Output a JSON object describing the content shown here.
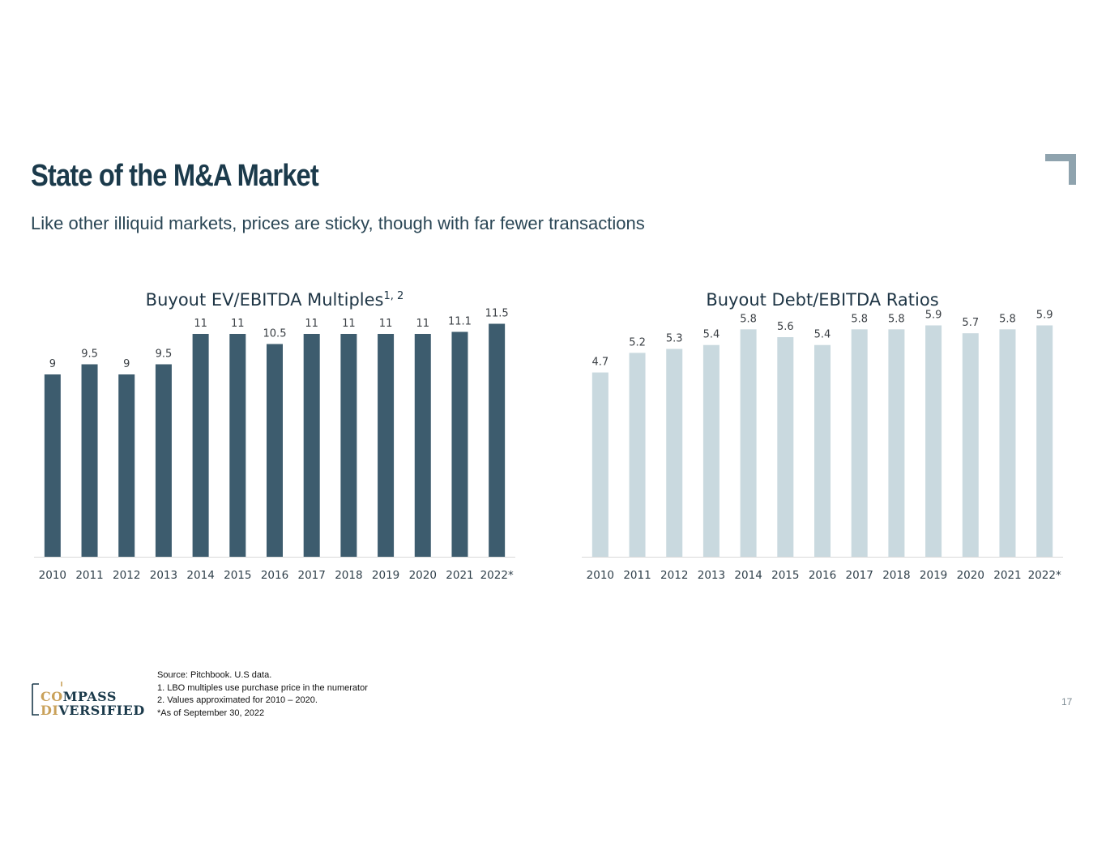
{
  "slide": {
    "title": "State of the M&A Market",
    "subtitle": "Like other illiquid markets, prices are sticky, though with far fewer transactions",
    "page_number": "17"
  },
  "footnotes": {
    "source": "Source: Pitchbook. U.S data.",
    "note1": "1. LBO multiples use purchase price in the numerator",
    "note2": "2. Values approximated for 2010 – 2020.",
    "note3": "*As of September 30, 2022"
  },
  "logo": {
    "line1_prefix": "CO",
    "line1_rest": "MPASS",
    "line2_prefix": "DI",
    "line2_rest": "VERSIFIED"
  },
  "colors": {
    "title": "#1b3a4b",
    "bar_dark": "#3d5c6e",
    "bar_light": "#c9d9df",
    "accent_gold": "#c9a15a",
    "corner": "#8fa3ae"
  },
  "chart_data": [
    {
      "type": "bar",
      "title": "Buyout EV/EBITDA Multiples",
      "title_superscript": "1, 2",
      "categories": [
        "2010",
        "2011",
        "2012",
        "2013",
        "2014",
        "2015",
        "2016",
        "2017",
        "2018",
        "2019",
        "2020",
        "2021",
        "2022*"
      ],
      "values": [
        9,
        9.5,
        9,
        9.5,
        11,
        11,
        10.5,
        11,
        11,
        11,
        11,
        11.1,
        11.5
      ],
      "labels": [
        "9",
        "9.5",
        "9",
        "9.5",
        "11",
        "11",
        "10.5",
        "11",
        "11",
        "11",
        "11",
        "11.1",
        "11.5"
      ],
      "color": "#3d5c6e",
      "ylim": [
        0,
        12
      ],
      "grid": false,
      "xlabel": "",
      "ylabel": ""
    },
    {
      "type": "bar",
      "title": "Buyout Debt/EBITDA Ratios",
      "title_superscript": "",
      "categories": [
        "2010",
        "2011",
        "2012",
        "2013",
        "2014",
        "2015",
        "2016",
        "2017",
        "2018",
        "2019",
        "2020",
        "2021",
        "2022*"
      ],
      "values": [
        4.7,
        5.2,
        5.3,
        5.4,
        5.8,
        5.6,
        5.4,
        5.8,
        5.8,
        5.9,
        5.7,
        5.8,
        5.9
      ],
      "labels": [
        "4.7",
        "5.2",
        "5.3",
        "5.4",
        "5.8",
        "5.6",
        "5.4",
        "5.8",
        "5.8",
        "5.9",
        "5.7",
        "5.8",
        "5.9"
      ],
      "color": "#c9d9df",
      "ylim": [
        0,
        6.2
      ],
      "grid": false,
      "xlabel": "",
      "ylabel": ""
    }
  ]
}
